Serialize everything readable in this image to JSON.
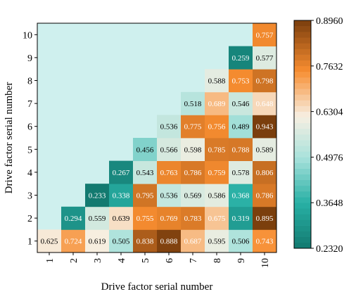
{
  "chart_data": {
    "type": "heatmap",
    "title": "",
    "xlabel": "Drive factor serial number",
    "ylabel": "Drive factor serial number",
    "x_categories": [
      "1",
      "2",
      "3",
      "4",
      "5",
      "6",
      "7",
      "8",
      "9",
      "10"
    ],
    "y_categories": [
      "1",
      "2",
      "3",
      "4",
      "5",
      "6",
      "7",
      "8",
      "9",
      "10"
    ],
    "lower_triangle_cells": [
      {
        "row": "1",
        "values": [
          0.625,
          0.724,
          0.619,
          0.505,
          0.838,
          0.888,
          0.687,
          0.595,
          0.506,
          0.743
        ]
      },
      {
        "row": "2",
        "values": [
          null,
          0.294,
          0.559,
          0.639,
          0.755,
          0.769,
          0.783,
          0.675,
          0.319,
          0.895
        ]
      },
      {
        "row": "3",
        "values": [
          null,
          null,
          0.233,
          0.338,
          0.795,
          0.536,
          0.569,
          0.586,
          0.368,
          0.786
        ]
      },
      {
        "row": "4",
        "values": [
          null,
          null,
          null,
          0.267,
          0.543,
          0.763,
          0.786,
          0.759,
          0.578,
          0.806
        ]
      },
      {
        "row": "5",
        "values": [
          null,
          null,
          null,
          null,
          0.456,
          0.566,
          0.598,
          0.785,
          0.788,
          0.589
        ]
      },
      {
        "row": "6",
        "values": [
          null,
          null,
          null,
          null,
          null,
          0.536,
          0.775,
          0.756,
          0.489,
          0.943
        ]
      },
      {
        "row": "7",
        "values": [
          null,
          null,
          null,
          null,
          null,
          null,
          0.518,
          0.689,
          0.546,
          0.648
        ]
      },
      {
        "row": "8",
        "values": [
          null,
          null,
          null,
          null,
          null,
          null,
          null,
          0.588,
          0.753,
          0.798
        ]
      },
      {
        "row": "9",
        "values": [
          null,
          null,
          null,
          null,
          null,
          null,
          null,
          null,
          0.259,
          0.577
        ]
      },
      {
        "row": "10",
        "values": [
          null,
          null,
          null,
          null,
          null,
          null,
          null,
          null,
          null,
          0.757
        ]
      }
    ],
    "colorbar": {
      "min": 0.232,
      "max": 0.896,
      "ticks": [
        "0.2320",
        "0.3648",
        "0.4976",
        "0.6304",
        "0.7632",
        "0.8960"
      ],
      "colors": {
        "low": "#137a70",
        "mid": "#f7efe2",
        "high": "#7a3e0d"
      }
    },
    "empty_cell_color": "#cff0ee",
    "grid": false
  }
}
